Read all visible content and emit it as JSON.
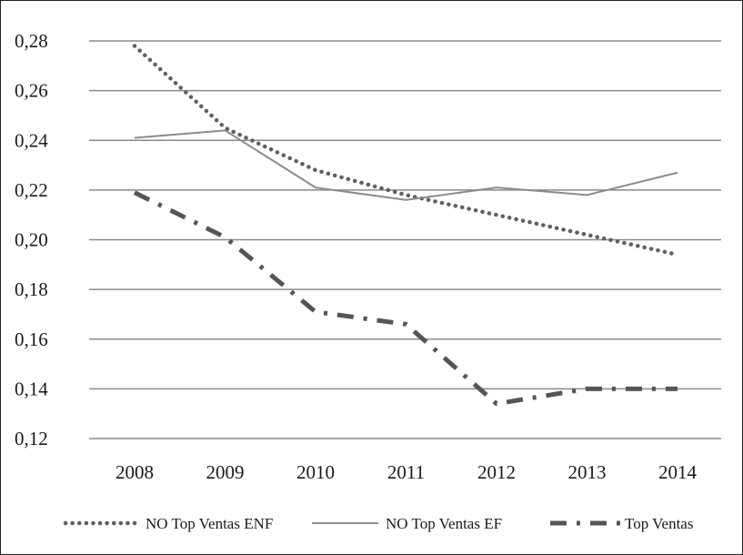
{
  "chart_data": {
    "type": "line",
    "title": "",
    "xlabel": "",
    "ylabel": "",
    "x": [
      "2008",
      "2009",
      "2010",
      "2011",
      "2012",
      "2013",
      "2014"
    ],
    "ylim": [
      0.12,
      0.28
    ],
    "y_ticks": [
      "0,12",
      "0,14",
      "0,16",
      "0,18",
      "0,20",
      "0,22",
      "0,24",
      "0,26",
      "0,28"
    ],
    "grid": "horizontal",
    "legend_position": "bottom",
    "series": [
      {
        "name": "NO Top Ventas ENF",
        "style": "dotted",
        "color": "#5f5f5f",
        "values": [
          0.278,
          0.245,
          0.228,
          0.218,
          0.21,
          0.202,
          0.194
        ]
      },
      {
        "name": "NO Top Ventas EF",
        "style": "solid",
        "color": "#8c8c8c",
        "values": [
          0.241,
          0.244,
          0.221,
          0.216,
          0.221,
          0.218,
          0.227
        ]
      },
      {
        "name": "Top Ventas",
        "style": "dash-dot",
        "color": "#555555",
        "values": [
          0.219,
          0.201,
          0.171,
          0.166,
          0.134,
          0.14,
          0.14
        ]
      }
    ]
  }
}
